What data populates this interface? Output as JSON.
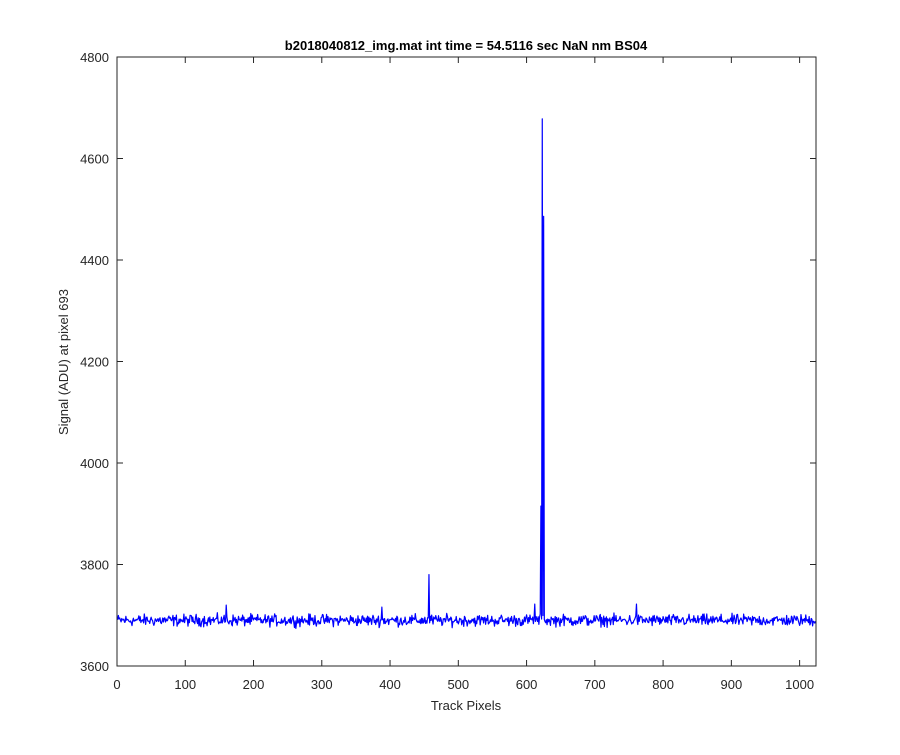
{
  "chart_data": {
    "type": "line",
    "title": "b2018040812_img.mat int time = 54.5116 sec   NaN nm BS04",
    "xlabel": "Track Pixels",
    "ylabel": "Signal (ADU) at pixel 693",
    "xlim": [
      0,
      1024
    ],
    "ylim": [
      3600,
      4800
    ],
    "xticks": [
      0,
      100,
      200,
      300,
      400,
      500,
      600,
      700,
      800,
      900,
      1000
    ],
    "yticks": [
      3600,
      3800,
      4000,
      4200,
      4400,
      4600,
      4800
    ],
    "grid": false,
    "box": true,
    "baseline_level": 3690,
    "noise_amplitude": 14,
    "series": [
      {
        "color": "#0000ff",
        "spikes": [
          {
            "x": 160,
            "y": 3720
          },
          {
            "x": 388,
            "y": 3716
          },
          {
            "x": 457,
            "y": 3780
          },
          {
            "x": 612,
            "y": 3722
          },
          {
            "x": 621,
            "y": 3915
          },
          {
            "x": 623,
            "y": 4678
          },
          {
            "x": 625,
            "y": 4486
          },
          {
            "x": 761,
            "y": 3722
          }
        ]
      }
    ]
  }
}
